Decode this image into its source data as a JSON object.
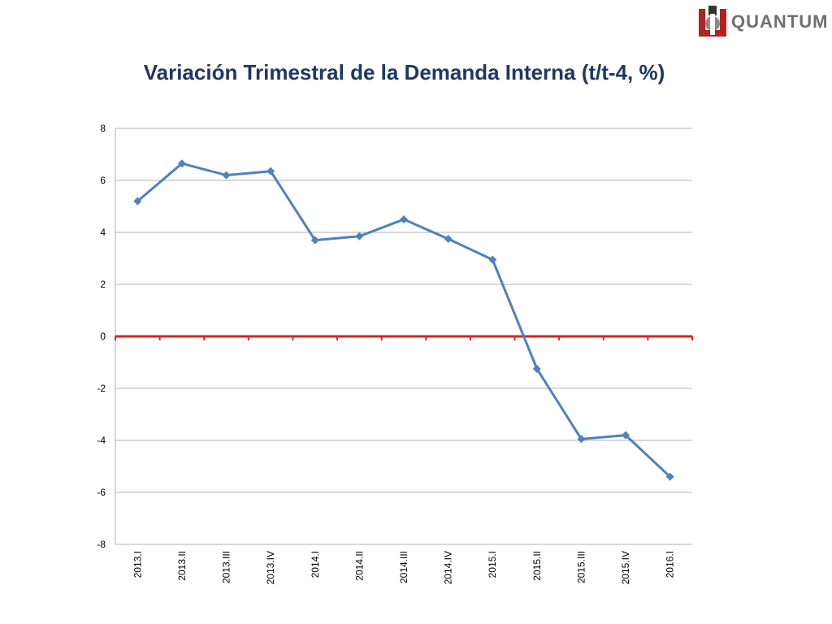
{
  "brand": {
    "name": "QUANTUM"
  },
  "colors": {
    "title": "#1f3864",
    "series": "#4f81bd",
    "zero_line": "#e02020",
    "grid": "#b0b0b0"
  },
  "chart_data": {
    "type": "line",
    "title": "Variación Trimestral de la Demanda Interna (t/t-4, %)",
    "xlabel": "",
    "ylabel": "",
    "ylim": [
      -8,
      8
    ],
    "yticks": [
      8,
      6,
      4,
      2,
      0,
      -2,
      -4,
      -6,
      -8
    ],
    "grid": true,
    "legend": "none",
    "categories": [
      "2013.I",
      "2013.II",
      "2013.III",
      "2013.IV",
      "2014.I",
      "2014.II",
      "2014.III",
      "2014.IV",
      "2015.I",
      "2015.II",
      "2015.III",
      "2015.IV",
      "2016.I"
    ],
    "series": [
      {
        "values": [
          5.2,
          6.65,
          6.2,
          6.35,
          3.7,
          3.85,
          4.5,
          3.75,
          2.95,
          -1.25,
          -3.95,
          -3.8,
          -5.4
        ]
      }
    ]
  }
}
